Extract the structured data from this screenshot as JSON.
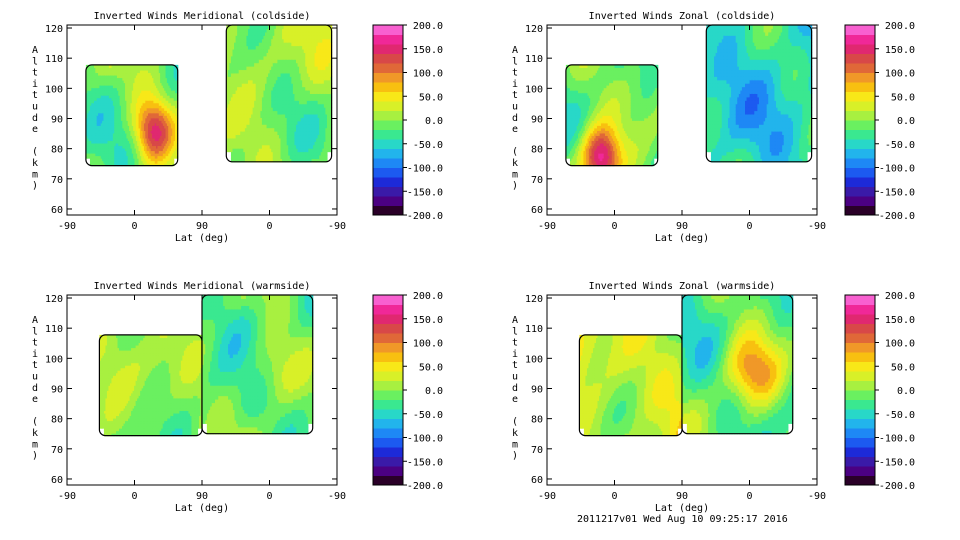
{
  "footer": "2011217v01 Wed Aug 10 09:25:17 2016",
  "colorbar": {
    "ticks": [
      "200.0",
      "150.0",
      "100.0",
      "50.0",
      "0.0",
      "-50.0",
      "-100.0",
      "-150.0",
      "-200.0"
    ],
    "range": [
      -200,
      200
    ],
    "colors": [
      "#2a0028",
      "#4b0082",
      "#3a1aa8",
      "#1d2ad8",
      "#1c5af0",
      "#1e88f5",
      "#22b4ec",
      "#28d8c8",
      "#3ae890",
      "#6af060",
      "#a8f040",
      "#d8f028",
      "#f8e818",
      "#f8c010",
      "#f09828",
      "#e06838",
      "#d84848",
      "#e02870",
      "#f02898",
      "#f860d0"
    ]
  },
  "chart_data": [
    {
      "type": "heatmap",
      "title": "Inverted Winds Meridional (coldside)",
      "xlabel": "Lat (deg)",
      "ylabel": "Altitude (km)",
      "x_ticks": [
        "-90",
        "0",
        "90",
        "0",
        "-90"
      ],
      "y_ticks": [
        "60",
        "70",
        "80",
        "90",
        "100",
        "110",
        "120"
      ],
      "ylim": [
        58,
        121
      ],
      "segments": [
        {
          "lat_range": [
            -90,
            60
          ],
          "alt_range": [
            76,
            110
          ],
          "note": "left swath"
        },
        {
          "lat_range": [
            -60,
            90
          ],
          "alt_range": [
            78,
            121
          ],
          "note": "right swath"
        }
      ],
      "values_hint": {
        "left_swath_peak": 150,
        "right_swath_typical": 0
      }
    },
    {
      "type": "heatmap",
      "title": "Inverted Winds Zonal (coldside)",
      "xlabel": "Lat (deg)",
      "ylabel": "Altitude (km)",
      "x_ticks": [
        "-90",
        "0",
        "90",
        "0",
        "-90"
      ],
      "y_ticks": [
        "60",
        "70",
        "80",
        "90",
        "100",
        "110",
        "120"
      ],
      "ylim": [
        58,
        121
      ],
      "values_hint": {
        "left_swath_peak": 180,
        "right_swath_typical": -50
      }
    },
    {
      "type": "heatmap",
      "title": "Inverted Winds Meridional (warmside)",
      "xlabel": "Lat (deg)",
      "ylabel": "Altitude (km)",
      "x_ticks": [
        "-90",
        "0",
        "90",
        "0",
        "-90"
      ],
      "y_ticks": [
        "60",
        "70",
        "80",
        "90",
        "100",
        "110",
        "120"
      ],
      "ylim": [
        58,
        121
      ],
      "values_hint": {
        "left_swath_typical": 0,
        "right_swath_peak": 50
      }
    },
    {
      "type": "heatmap",
      "title": "Inverted Winds Zonal (warmside)",
      "xlabel": "Lat (deg)",
      "ylabel": "Altitude (km)",
      "x_ticks": [
        "-90",
        "0",
        "90",
        "0",
        "-90"
      ],
      "y_ticks": [
        "60",
        "70",
        "80",
        "90",
        "100",
        "110",
        "120"
      ],
      "ylim": [
        58,
        121
      ],
      "values_hint": {
        "left_swath_typical": 20,
        "right_swath_peak": 100
      }
    }
  ]
}
